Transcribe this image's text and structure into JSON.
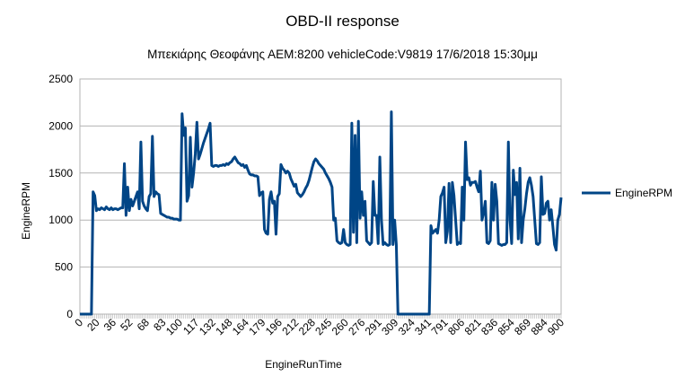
{
  "chart_data": {
    "type": "line",
    "title": "OBD-II response",
    "subtitle": "Μπεκιάρης Θεοφάνης ΑΕΜ:8200 vehicleCode:V9819 17/6/2018 15:30μμ",
    "xlabel": "EngineRunTime",
    "ylabel": "EngineRPM",
    "ylim": [
      0,
      2500
    ],
    "yticks": [
      0,
      500,
      1000,
      1500,
      2000,
      2500
    ],
    "grid": true,
    "legend_position": "right",
    "x_tick_labels": [
      "0",
      "20",
      "36",
      "52",
      "68",
      "83",
      "100",
      "117",
      "132",
      "148",
      "164",
      "179",
      "196",
      "212",
      "228",
      "245",
      "260",
      "276",
      "291",
      "309",
      "324",
      "341",
      "791",
      "806",
      "821",
      "836",
      "854",
      "869",
      "884",
      "900"
    ],
    "series": [
      {
        "name": "EngineRPM",
        "color": "#004586",
        "values": [
          0,
          0,
          0,
          0,
          0,
          0,
          0,
          0,
          1300,
          1260,
          1100,
          1120,
          1110,
          1130,
          1120,
          1110,
          1140,
          1120,
          1110,
          1130,
          1110,
          1120,
          1120,
          1110,
          1120,
          1130,
          1130,
          1600,
          1050,
          1350,
          1100,
          1220,
          1150,
          1200,
          1250,
          1300,
          1120,
          1830,
          1200,
          1150,
          1120,
          1100,
          1250,
          1280,
          1890,
          1250,
          1300,
          1280,
          1270,
          1070,
          1060,
          1050,
          1040,
          1030,
          1030,
          1020,
          1020,
          1010,
          1010,
          1010,
          1000,
          1000,
          2130,
          1900,
          1980,
          1200,
          1260,
          1880,
          1350,
          1500,
          1700,
          2040,
          1650,
          1700,
          1760,
          1820,
          1870,
          1920,
          1970,
          2030,
          1580,
          1570,
          1580,
          1580,
          1570,
          1580,
          1580,
          1590,
          1580,
          1600,
          1590,
          1610,
          1620,
          1650,
          1670,
          1640,
          1610,
          1600,
          1580,
          1590,
          1560,
          1580,
          1530,
          1490,
          1480,
          1480,
          1470,
          1470,
          1460,
          1260,
          1290,
          1300,
          900,
          860,
          850,
          1220,
          1300,
          1180,
          1200,
          850,
          1250,
          1280,
          1590,
          1550,
          1530,
          1500,
          1520,
          1500,
          1440,
          1400,
          1360,
          1380,
          1290,
          1270,
          1250,
          1270,
          1300,
          1340,
          1370,
          1420,
          1490,
          1560,
          1620,
          1650,
          1630,
          1600,
          1580,
          1560,
          1540,
          1500,
          1470,
          1440,
          1400,
          1350,
          1000,
          1020,
          780,
          760,
          750,
          760,
          900,
          760,
          740,
          730,
          740,
          2030,
          870,
          1900,
          760,
          2050,
          1020,
          1300,
          1050,
          1200,
          780,
          760,
          740,
          760,
          1410,
          1050,
          1050,
          750,
          1670,
          1000,
          740,
          760,
          740,
          730,
          740,
          2150,
          740,
          1000,
          740,
          0,
          0,
          0,
          0,
          0,
          0,
          0,
          0,
          0,
          0,
          0,
          0,
          0,
          0,
          0,
          0,
          0,
          0,
          0,
          0,
          940,
          860,
          880,
          900,
          860,
          1000,
          1250,
          1290,
          1350,
          760,
          880,
          1390,
          760,
          1400,
          1260,
          1000,
          740,
          760,
          750,
          1350,
          1000,
          1830,
          1430,
          1450,
          1370,
          1400,
          1400,
          1410,
          1350,
          1300,
          1520,
          1000,
          1080,
          1200,
          760,
          750,
          780,
          1400,
          1000,
          1380,
          1200,
          750,
          740,
          730,
          740,
          740,
          760,
          1830,
          1000,
          750,
          1530,
          1270,
          1400,
          800,
          1550,
          760,
          1000,
          1120,
          1280,
          1400,
          1450,
          1370,
          1250,
          1000,
          750,
          740,
          760,
          1460,
          1060,
          1070,
          1180,
          1200,
          1000,
          1110,
          930,
          740,
          680,
          1000,
          1060,
          1240
        ]
      }
    ]
  }
}
